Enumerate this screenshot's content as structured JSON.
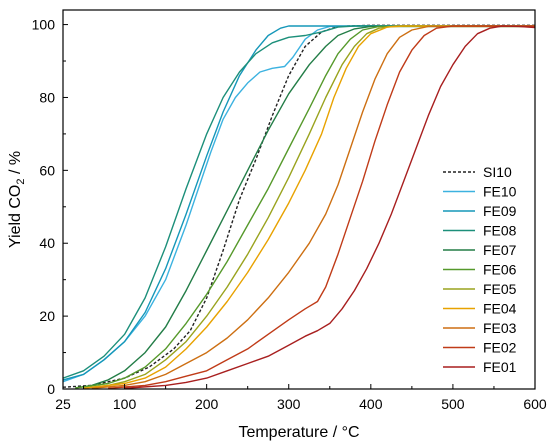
{
  "chart_data": {
    "type": "line",
    "xlabel": "Temperature / °C",
    "ylabel_parts": {
      "pre": "Yield CO",
      "sub": "2",
      "post": " / %"
    },
    "xlim": [
      25,
      600
    ],
    "ylim": [
      0,
      104
    ],
    "xticks": [
      "25",
      "100",
      "200",
      "300",
      "400",
      "500",
      "600"
    ],
    "xtick_values": [
      25,
      100,
      200,
      300,
      400,
      500,
      600
    ],
    "yticks": [
      "0",
      "20",
      "40",
      "60",
      "80",
      "100"
    ],
    "ytick_values": [
      0,
      20,
      40,
      60,
      80,
      100
    ],
    "grid": false,
    "legend_position": "right",
    "series": [
      {
        "name": "SI10",
        "color": "#222222",
        "dashed": true,
        "points": [
          [
            25,
            0.5
          ],
          [
            60,
            1
          ],
          [
            100,
            3
          ],
          [
            130,
            6
          ],
          [
            160,
            11
          ],
          [
            180,
            16
          ],
          [
            200,
            25
          ],
          [
            220,
            38
          ],
          [
            240,
            52
          ],
          [
            260,
            63
          ],
          [
            280,
            75
          ],
          [
            300,
            86
          ],
          [
            320,
            94
          ],
          [
            340,
            98
          ],
          [
            360,
            99.5
          ],
          [
            400,
            99.8
          ],
          [
            600,
            99.8
          ]
        ]
      },
      {
        "name": "FE10",
        "color": "#3cb2e0",
        "points": [
          [
            25,
            2
          ],
          [
            50,
            4
          ],
          [
            75,
            8
          ],
          [
            100,
            13
          ],
          [
            125,
            20
          ],
          [
            150,
            30
          ],
          [
            175,
            45
          ],
          [
            190,
            55
          ],
          [
            205,
            65
          ],
          [
            220,
            74
          ],
          [
            235,
            80
          ],
          [
            250,
            84
          ],
          [
            265,
            87
          ],
          [
            280,
            88
          ],
          [
            295,
            88.5
          ],
          [
            305,
            91
          ],
          [
            320,
            96
          ],
          [
            335,
            98.5
          ],
          [
            350,
            99.5
          ],
          [
            400,
            99.7
          ],
          [
            600,
            99.7
          ]
        ]
      },
      {
        "name": "FE09",
        "color": "#1597b9",
        "points": [
          [
            25,
            2.5
          ],
          [
            50,
            4
          ],
          [
            75,
            8
          ],
          [
            100,
            13
          ],
          [
            125,
            21
          ],
          [
            150,
            33
          ],
          [
            175,
            48
          ],
          [
            200,
            64
          ],
          [
            220,
            76
          ],
          [
            240,
            86
          ],
          [
            260,
            93
          ],
          [
            275,
            97
          ],
          [
            290,
            99
          ],
          [
            300,
            99.6
          ],
          [
            600,
            99.6
          ]
        ]
      },
      {
        "name": "FE08",
        "color": "#1c8f7a",
        "points": [
          [
            25,
            3
          ],
          [
            50,
            5
          ],
          [
            75,
            9
          ],
          [
            100,
            15
          ],
          [
            125,
            25
          ],
          [
            150,
            39
          ],
          [
            175,
            55
          ],
          [
            200,
            70
          ],
          [
            220,
            80
          ],
          [
            240,
            87
          ],
          [
            260,
            92
          ],
          [
            280,
            95
          ],
          [
            300,
            96.5
          ],
          [
            320,
            97
          ],
          [
            340,
            98
          ],
          [
            360,
            99.3
          ],
          [
            380,
            99.6
          ],
          [
            600,
            99.6
          ]
        ]
      },
      {
        "name": "FE07",
        "color": "#237d47",
        "points": [
          [
            40,
            0.3
          ],
          [
            60,
            1
          ],
          [
            80,
            2.5
          ],
          [
            100,
            5
          ],
          [
            125,
            10
          ],
          [
            150,
            17
          ],
          [
            175,
            27
          ],
          [
            200,
            38
          ],
          [
            225,
            49
          ],
          [
            250,
            60
          ],
          [
            275,
            71
          ],
          [
            300,
            81
          ],
          [
            325,
            89
          ],
          [
            345,
            94
          ],
          [
            360,
            97
          ],
          [
            380,
            98.8
          ],
          [
            400,
            99.5
          ],
          [
            600,
            99.5
          ]
        ]
      },
      {
        "name": "FE06",
        "color": "#56992b",
        "points": [
          [
            40,
            0.3
          ],
          [
            80,
            1.5
          ],
          [
            100,
            3
          ],
          [
            125,
            6
          ],
          [
            150,
            11
          ],
          [
            175,
            18
          ],
          [
            200,
            26
          ],
          [
            225,
            35
          ],
          [
            250,
            45
          ],
          [
            275,
            55
          ],
          [
            300,
            66
          ],
          [
            325,
            77
          ],
          [
            345,
            86
          ],
          [
            360,
            92
          ],
          [
            375,
            96
          ],
          [
            390,
            98.5
          ],
          [
            410,
            99.5
          ],
          [
            600,
            99.5
          ]
        ]
      },
      {
        "name": "FE05",
        "color": "#9aa31e",
        "points": [
          [
            50,
            0.3
          ],
          [
            80,
            1
          ],
          [
            100,
            2
          ],
          [
            125,
            4
          ],
          [
            150,
            8
          ],
          [
            175,
            13
          ],
          [
            200,
            20
          ],
          [
            225,
            28
          ],
          [
            250,
            37
          ],
          [
            275,
            47
          ],
          [
            300,
            58
          ],
          [
            325,
            70
          ],
          [
            345,
            80
          ],
          [
            365,
            89
          ],
          [
            380,
            94
          ],
          [
            395,
            97.5
          ],
          [
            410,
            99
          ],
          [
            430,
            99.6
          ],
          [
            600,
            99.6
          ]
        ]
      },
      {
        "name": "FE04",
        "color": "#e8a200",
        "points": [
          [
            50,
            0.2
          ],
          [
            100,
            1.5
          ],
          [
            125,
            3
          ],
          [
            150,
            6
          ],
          [
            175,
            11
          ],
          [
            200,
            17
          ],
          [
            225,
            24
          ],
          [
            250,
            32
          ],
          [
            275,
            41
          ],
          [
            300,
            51
          ],
          [
            320,
            60
          ],
          [
            340,
            70
          ],
          [
            355,
            80
          ],
          [
            370,
            88
          ],
          [
            385,
            94
          ],
          [
            400,
            97.5
          ],
          [
            420,
            99.3
          ],
          [
            440,
            99.6
          ],
          [
            600,
            99.6
          ]
        ]
      },
      {
        "name": "FE03",
        "color": "#cd6f12",
        "points": [
          [
            60,
            0.2
          ],
          [
            100,
            1
          ],
          [
            125,
            2
          ],
          [
            150,
            4
          ],
          [
            175,
            7
          ],
          [
            200,
            10
          ],
          [
            225,
            14
          ],
          [
            250,
            19
          ],
          [
            275,
            25
          ],
          [
            300,
            32
          ],
          [
            325,
            40
          ],
          [
            345,
            48
          ],
          [
            360,
            56
          ],
          [
            375,
            66
          ],
          [
            390,
            76
          ],
          [
            405,
            85
          ],
          [
            420,
            92
          ],
          [
            435,
            96.5
          ],
          [
            450,
            98.5
          ],
          [
            470,
            99.5
          ],
          [
            600,
            99.5
          ]
        ]
      },
      {
        "name": "FE02",
        "color": "#c03b18",
        "points": [
          [
            80,
            0.2
          ],
          [
            125,
            1
          ],
          [
            150,
            2
          ],
          [
            175,
            3.5
          ],
          [
            200,
            5
          ],
          [
            225,
            8
          ],
          [
            250,
            11
          ],
          [
            275,
            15
          ],
          [
            300,
            19
          ],
          [
            320,
            22
          ],
          [
            335,
            24
          ],
          [
            345,
            28
          ],
          [
            360,
            37
          ],
          [
            375,
            47
          ],
          [
            390,
            57
          ],
          [
            405,
            68
          ],
          [
            420,
            78
          ],
          [
            435,
            87
          ],
          [
            450,
            93
          ],
          [
            465,
            97
          ],
          [
            480,
            99
          ],
          [
            500,
            99.6
          ],
          [
            600,
            99.6
          ]
        ]
      },
      {
        "name": "FE01",
        "color": "#a81f1f",
        "points": [
          [
            100,
            0.2
          ],
          [
            150,
            1
          ],
          [
            175,
            1.8
          ],
          [
            200,
            3
          ],
          [
            225,
            5
          ],
          [
            250,
            7
          ],
          [
            275,
            9
          ],
          [
            300,
            12
          ],
          [
            320,
            14.5
          ],
          [
            335,
            16
          ],
          [
            350,
            18
          ],
          [
            365,
            22
          ],
          [
            380,
            27
          ],
          [
            395,
            33
          ],
          [
            410,
            40
          ],
          [
            425,
            48
          ],
          [
            440,
            57
          ],
          [
            455,
            66
          ],
          [
            470,
            75
          ],
          [
            485,
            83
          ],
          [
            500,
            89
          ],
          [
            515,
            94
          ],
          [
            530,
            97.5
          ],
          [
            545,
            99
          ],
          [
            560,
            99.6
          ],
          [
            580,
            99.5
          ],
          [
            600,
            99.2
          ]
        ]
      }
    ]
  }
}
